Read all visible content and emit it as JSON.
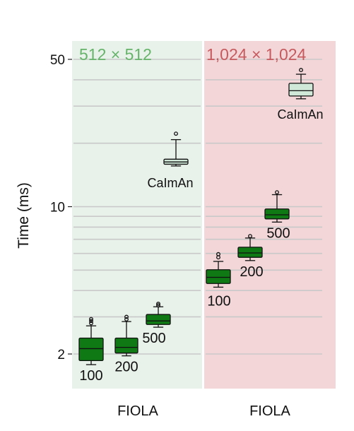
{
  "chart_data": {
    "type": "box",
    "ylabel": "Time (ms)",
    "yscale": "log",
    "ylim": [
      1.55,
      70
    ],
    "yticks": [
      2,
      10,
      50
    ],
    "ytick_labels": [
      "2",
      "10",
      "50"
    ],
    "grid": true,
    "colors": {
      "left_panel_bg": "#e8f1ea",
      "right_panel_bg": "#f2d6d8",
      "left_title": "#66b46a",
      "right_title": "#c65a5e",
      "fiola_box": "#0f7a14",
      "caiman_box": "#cfe8d7",
      "gridline": "#c9c9c9"
    },
    "panels": [
      {
        "title": "512 × 512",
        "xlabel": "FIOLA",
        "boxes": [
          {
            "label": "100",
            "whislo": 1.78,
            "q1": 1.86,
            "med": 2.12,
            "q3": 2.38,
            "whishi": 2.72,
            "fliers": [
              2.8,
              2.87,
              2.93
            ]
          },
          {
            "label": "200",
            "whislo": 1.96,
            "q1": 2.02,
            "med": 2.15,
            "q3": 2.38,
            "whishi": 2.85,
            "fliers": [
              2.92,
              3.0
            ]
          },
          {
            "label": "500",
            "whislo": 2.68,
            "q1": 2.76,
            "med": 2.87,
            "q3": 3.08,
            "whishi": 3.35,
            "fliers": [
              3.4,
              3.46
            ]
          },
          {
            "label": "CaImAn",
            "whislo": 15.6,
            "q1": 15.9,
            "med": 16.3,
            "q3": 16.8,
            "whishi": 20.8,
            "fliers": [
              22.2
            ]
          }
        ]
      },
      {
        "title": "1,024 × 1,024",
        "xlabel": "FIOLA",
        "boxes": [
          {
            "label": "100",
            "whislo": 4.15,
            "q1": 4.32,
            "med": 4.62,
            "q3": 5.02,
            "whishi": 5.5,
            "fliers": [
              5.75,
              5.95
            ]
          },
          {
            "label": "200",
            "whislo": 5.55,
            "q1": 5.75,
            "med": 6.03,
            "q3": 6.42,
            "whishi": 7.1,
            "fliers": [
              7.25
            ]
          },
          {
            "label": "500",
            "whislo": 8.45,
            "q1": 8.75,
            "med": 9.15,
            "q3": 9.75,
            "whishi": 11.4,
            "fliers": [
              11.7
            ]
          },
          {
            "label": "CaImAn",
            "whislo": 32.5,
            "q1": 33.5,
            "med": 35.5,
            "q3": 38.5,
            "whishi": 42.5,
            "fliers": [
              44.5
            ]
          }
        ]
      }
    ]
  }
}
